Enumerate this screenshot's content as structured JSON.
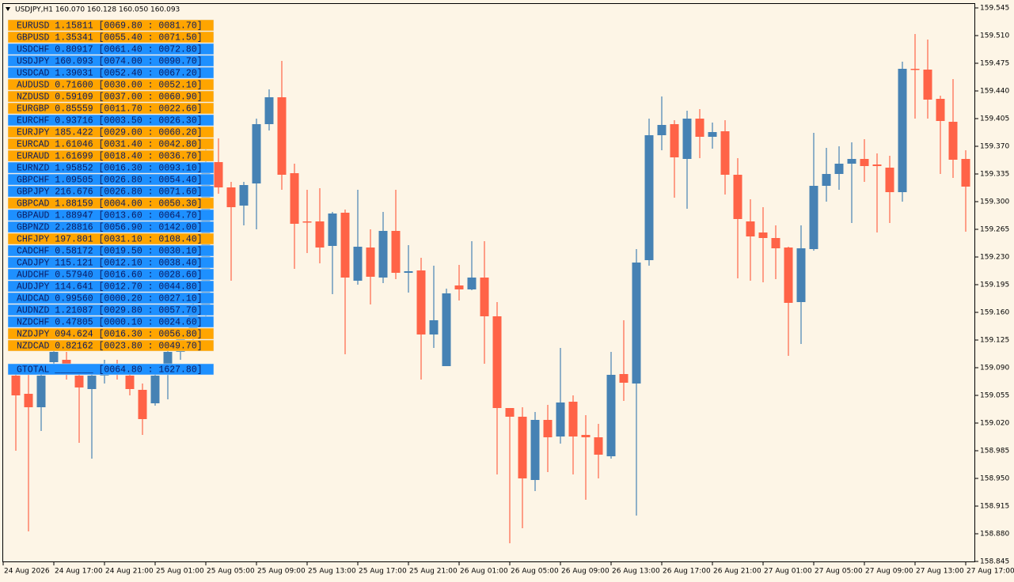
{
  "chart_data": {
    "type": "candlestick",
    "title": "USDJPY,H1  160.070 160.128 160.050 160.093",
    "up_color": "#4682b4",
    "down_color": "#ff6347",
    "ylim": [
      158.844,
      159.551
    ],
    "yticks": [
      {
        "value": 159.545,
        "label": "159.545"
      },
      {
        "value": 159.51,
        "label": "159.510"
      },
      {
        "value": 159.475,
        "label": "159.475"
      },
      {
        "value": 159.44,
        "label": "159.440"
      },
      {
        "value": 159.405,
        "label": "159.405"
      },
      {
        "value": 159.37,
        "label": "159.370"
      },
      {
        "value": 159.335,
        "label": "159.335"
      },
      {
        "value": 159.3,
        "label": "159.300"
      },
      {
        "value": 159.265,
        "label": "159.265"
      },
      {
        "value": 159.23,
        "label": "159.230"
      },
      {
        "value": 159.195,
        "label": "159.195"
      },
      {
        "value": 159.16,
        "label": "159.160"
      },
      {
        "value": 159.125,
        "label": "159.125"
      },
      {
        "value": 159.09,
        "label": "159.090"
      },
      {
        "value": 159.055,
        "label": "159.055"
      },
      {
        "value": 159.02,
        "label": "159.020"
      },
      {
        "value": 158.985,
        "label": "158.985"
      },
      {
        "value": 158.95,
        "label": "158.950"
      },
      {
        "value": 158.915,
        "label": "158.915"
      },
      {
        "value": 158.88,
        "label": "158.880"
      },
      {
        "value": 158.845,
        "label": "158.845"
      }
    ],
    "xlim": [
      -1.25,
      75.75
    ],
    "xticks": [
      {
        "value": -1,
        "label": "24 Aug 2026"
      },
      {
        "value": 3,
        "label": "24 Aug 17:00"
      },
      {
        "value": 7,
        "label": "24 Aug 21:00"
      },
      {
        "value": 11,
        "label": "25 Aug 01:00"
      },
      {
        "value": 15,
        "label": "25 Aug 05:00"
      },
      {
        "value": 19,
        "label": "25 Aug 09:00"
      },
      {
        "value": 23,
        "label": "25 Aug 13:00"
      },
      {
        "value": 27,
        "label": "25 Aug 17:00"
      },
      {
        "value": 31,
        "label": "25 Aug 21:00"
      },
      {
        "value": 35,
        "label": "26 Aug 01:00"
      },
      {
        "value": 39,
        "label": "26 Aug 05:00"
      },
      {
        "value": 43,
        "label": "26 Aug 09:00"
      },
      {
        "value": 47,
        "label": "26 Aug 13:00"
      },
      {
        "value": 51,
        "label": "26 Aug 17:00"
      },
      {
        "value": 55,
        "label": "26 Aug 21:00"
      },
      {
        "value": 59,
        "label": "27 Aug 01:00"
      },
      {
        "value": 63,
        "label": "27 Aug 05:00"
      },
      {
        "value": 67,
        "label": "27 Aug 09:00"
      },
      {
        "value": 71,
        "label": "27 Aug 13:00"
      },
      {
        "value": 75,
        "label": "27 Aug 17:00"
      }
    ],
    "open": [
      159.08,
      159.057,
      159.04,
      159.097,
      159.1,
      159.08,
      159.063,
      159.08,
      159.095,
      159.08,
      159.062,
      159.045,
      159.09,
      159.11,
      159.13,
      159.16,
      159.35,
      159.318,
      159.295,
      159.323,
      159.398,
      159.432,
      159.336,
      159.275,
      159.275,
      159.244,
      159.286,
      159.2,
      159.242,
      159.204,
      159.263,
      159.21,
      159.213,
      159.132,
      159.092,
      159.194,
      159.189,
      159.204,
      159.155,
      159.039,
      159.028,
      158.948,
      159.024,
      159.003,
      159.047,
      159.005,
      159.002,
      158.978,
      159.082,
      159.07,
      159.226,
      159.384,
      159.398,
      159.354,
      159.405,
      159.382,
      159.389,
      159.334,
      159.275,
      159.261,
      159.254,
      159.242,
      159.173,
      159.24,
      159.32,
      159.335,
      159.348,
      159.354,
      159.347,
      159.343,
      159.312,
      159.468,
      159.467,
      159.43,
      159.401,
      159.354
    ],
    "high": [
      159.085,
      159.085,
      159.09,
      159.115,
      159.11,
      159.085,
      159.09,
      159.1,
      159.1,
      159.09,
      159.07,
      159.085,
      159.12,
      159.14,
      159.18,
      159.37,
      159.38,
      159.325,
      159.325,
      159.405,
      159.442,
      159.478,
      159.348,
      159.315,
      159.317,
      159.287,
      159.29,
      159.315,
      159.265,
      159.287,
      159.315,
      159.245,
      159.229,
      159.219,
      159.19,
      159.22,
      159.25,
      159.25,
      159.173,
      159.039,
      159.04,
      159.034,
      159.043,
      159.115,
      159.055,
      159.03,
      159.019,
      159.11,
      159.15,
      159.24,
      159.405,
      159.433,
      159.403,
      159.415,
      159.417,
      159.4,
      159.403,
      159.355,
      159.303,
      159.293,
      159.27,
      159.243,
      159.27,
      159.387,
      159.368,
      159.37,
      159.375,
      159.379,
      159.361,
      159.358,
      159.477,
      159.512,
      159.505,
      159.434,
      159.455,
      159.365
    ],
    "low": [
      158.985,
      158.883,
      159.01,
      159.085,
      159.075,
      158.995,
      158.975,
      159.07,
      159.075,
      159.055,
      159.005,
      159.042,
      159.05,
      159.1,
      159.12,
      159.15,
      159.31,
      159.2,
      159.27,
      159.265,
      159.39,
      159.315,
      159.215,
      159.235,
      159.222,
      159.183,
      159.107,
      159.195,
      159.17,
      159.197,
      159.202,
      159.185,
      159.075,
      159.115,
      159.092,
      159.175,
      159.188,
      159.095,
      158.955,
      158.868,
      158.887,
      158.934,
      158.958,
      158.994,
      158.955,
      158.923,
      158.95,
      158.975,
      159.048,
      158.903,
      159.219,
      159.365,
      159.305,
      159.291,
      159.355,
      159.367,
      159.309,
      159.203,
      159.2,
      159.198,
      159.202,
      159.105,
      159.12,
      159.238,
      159.3,
      159.315,
      159.273,
      159.325,
      159.261,
      159.273,
      159.3,
      159.405,
      159.405,
      159.335,
      159.33,
      159.262
    ],
    "close": [
      159.055,
      159.04,
      159.08,
      159.11,
      159.085,
      159.065,
      159.08,
      159.095,
      159.085,
      159.063,
      159.025,
      159.08,
      159.11,
      159.13,
      159.16,
      159.35,
      159.318,
      159.293,
      159.321,
      159.398,
      159.432,
      159.334,
      159.272,
      159.274,
      159.242,
      159.285,
      159.204,
      159.243,
      159.205,
      159.263,
      159.21,
      159.212,
      159.132,
      159.15,
      159.184,
      159.189,
      159.204,
      159.155,
      159.039,
      159.028,
      158.95,
      159.024,
      159.002,
      159.046,
      159.003,
      159.002,
      158.98,
      159.081,
      159.071,
      159.223,
      159.384,
      159.397,
      159.356,
      159.405,
      159.382,
      159.388,
      159.334,
      159.278,
      159.256,
      159.254,
      159.241,
      159.172,
      159.241,
      159.32,
      159.335,
      159.348,
      159.354,
      159.345,
      159.345,
      159.312,
      159.468,
      159.467,
      159.429,
      159.402,
      159.353,
      159.319
    ]
  },
  "panel": {
    "colors": {
      "orange": "#ffa500",
      "blue": "#1e90ff"
    },
    "rows": [
      {
        "text": "EURUSD 1.15811 [0069.80 : 0081.70]",
        "color": "orange"
      },
      {
        "text": "GBPUSD 1.35341 [0055.40 : 0071.50]",
        "color": "orange"
      },
      {
        "text": "USDCHF 0.80917 [0061.40 : 0072.80]",
        "color": "blue"
      },
      {
        "text": "USDJPY 160.093 [0074.00 : 0090.70]",
        "color": "blue"
      },
      {
        "text": "USDCAD 1.39031 [0052.40 : 0067.20]",
        "color": "blue"
      },
      {
        "text": "AUDUSD 0.71600 [0030.00 : 0052.10]",
        "color": "orange"
      },
      {
        "text": "NZDUSD 0.59109 [0037.00 : 0060.90]",
        "color": "orange"
      },
      {
        "text": "EURGBP 0.85559 [0011.70 : 0022.60]",
        "color": "orange"
      },
      {
        "text": "EURCHF 0.93716 [0003.50 : 0026.30]",
        "color": "blue"
      },
      {
        "text": "EURJPY 185.422 [0029.00 : 0060.20]",
        "color": "orange"
      },
      {
        "text": "EURCAD 1.61046 [0031.40 : 0042.80]",
        "color": "orange"
      },
      {
        "text": "EURAUD 1.61699 [0018.40 : 0036.70]",
        "color": "orange"
      },
      {
        "text": "EURNZD 1.95852 [0016.30 : 0093.10]",
        "color": "blue"
      },
      {
        "text": "GBPCHF 1.09505 [0026.80 : 0054.40]",
        "color": "blue"
      },
      {
        "text": "GBPJPY 216.676 [0026.80 : 0071.60]",
        "color": "blue"
      },
      {
        "text": "GBPCAD 1.88159 [0004.00 : 0050.30]",
        "color": "orange"
      },
      {
        "text": "GBPAUD 1.88947 [0013.60 : 0064.70]",
        "color": "blue"
      },
      {
        "text": "GBPNZD 2.28816 [0056.90 : 0142.00]",
        "color": "blue"
      },
      {
        "text": "CHFJPY 197.801 [0031.10 : 0108.40]",
        "color": "orange"
      },
      {
        "text": "CADCHF 0.58172 [0019.50 : 0030.10]",
        "color": "blue"
      },
      {
        "text": "CADJPY 115.121 [0012.10 : 0038.40]",
        "color": "blue"
      },
      {
        "text": "AUDCHF 0.57940 [0016.60 : 0028.60]",
        "color": "blue"
      },
      {
        "text": "AUDJPY 114.641 [0012.70 : 0044.80]",
        "color": "blue"
      },
      {
        "text": "AUDCAD 0.99560 [0000.20 : 0027.10]",
        "color": "blue"
      },
      {
        "text": "AUDNZD 1.21087 [0029.80 : 0057.70]",
        "color": "blue"
      },
      {
        "text": "NZDCHF 0.47805 [0000.10 : 0024.60]",
        "color": "blue"
      },
      {
        "text": "NZDJPY 094.624 [0016.30 : 0056.80]",
        "color": "orange"
      },
      {
        "text": "NZDCAD 0.82162 [0023.80 : 0049.70]",
        "color": "orange"
      }
    ],
    "total": {
      "text": "GTOTAL _______ [0064.80 : 1627.80]",
      "color": "blue"
    }
  }
}
